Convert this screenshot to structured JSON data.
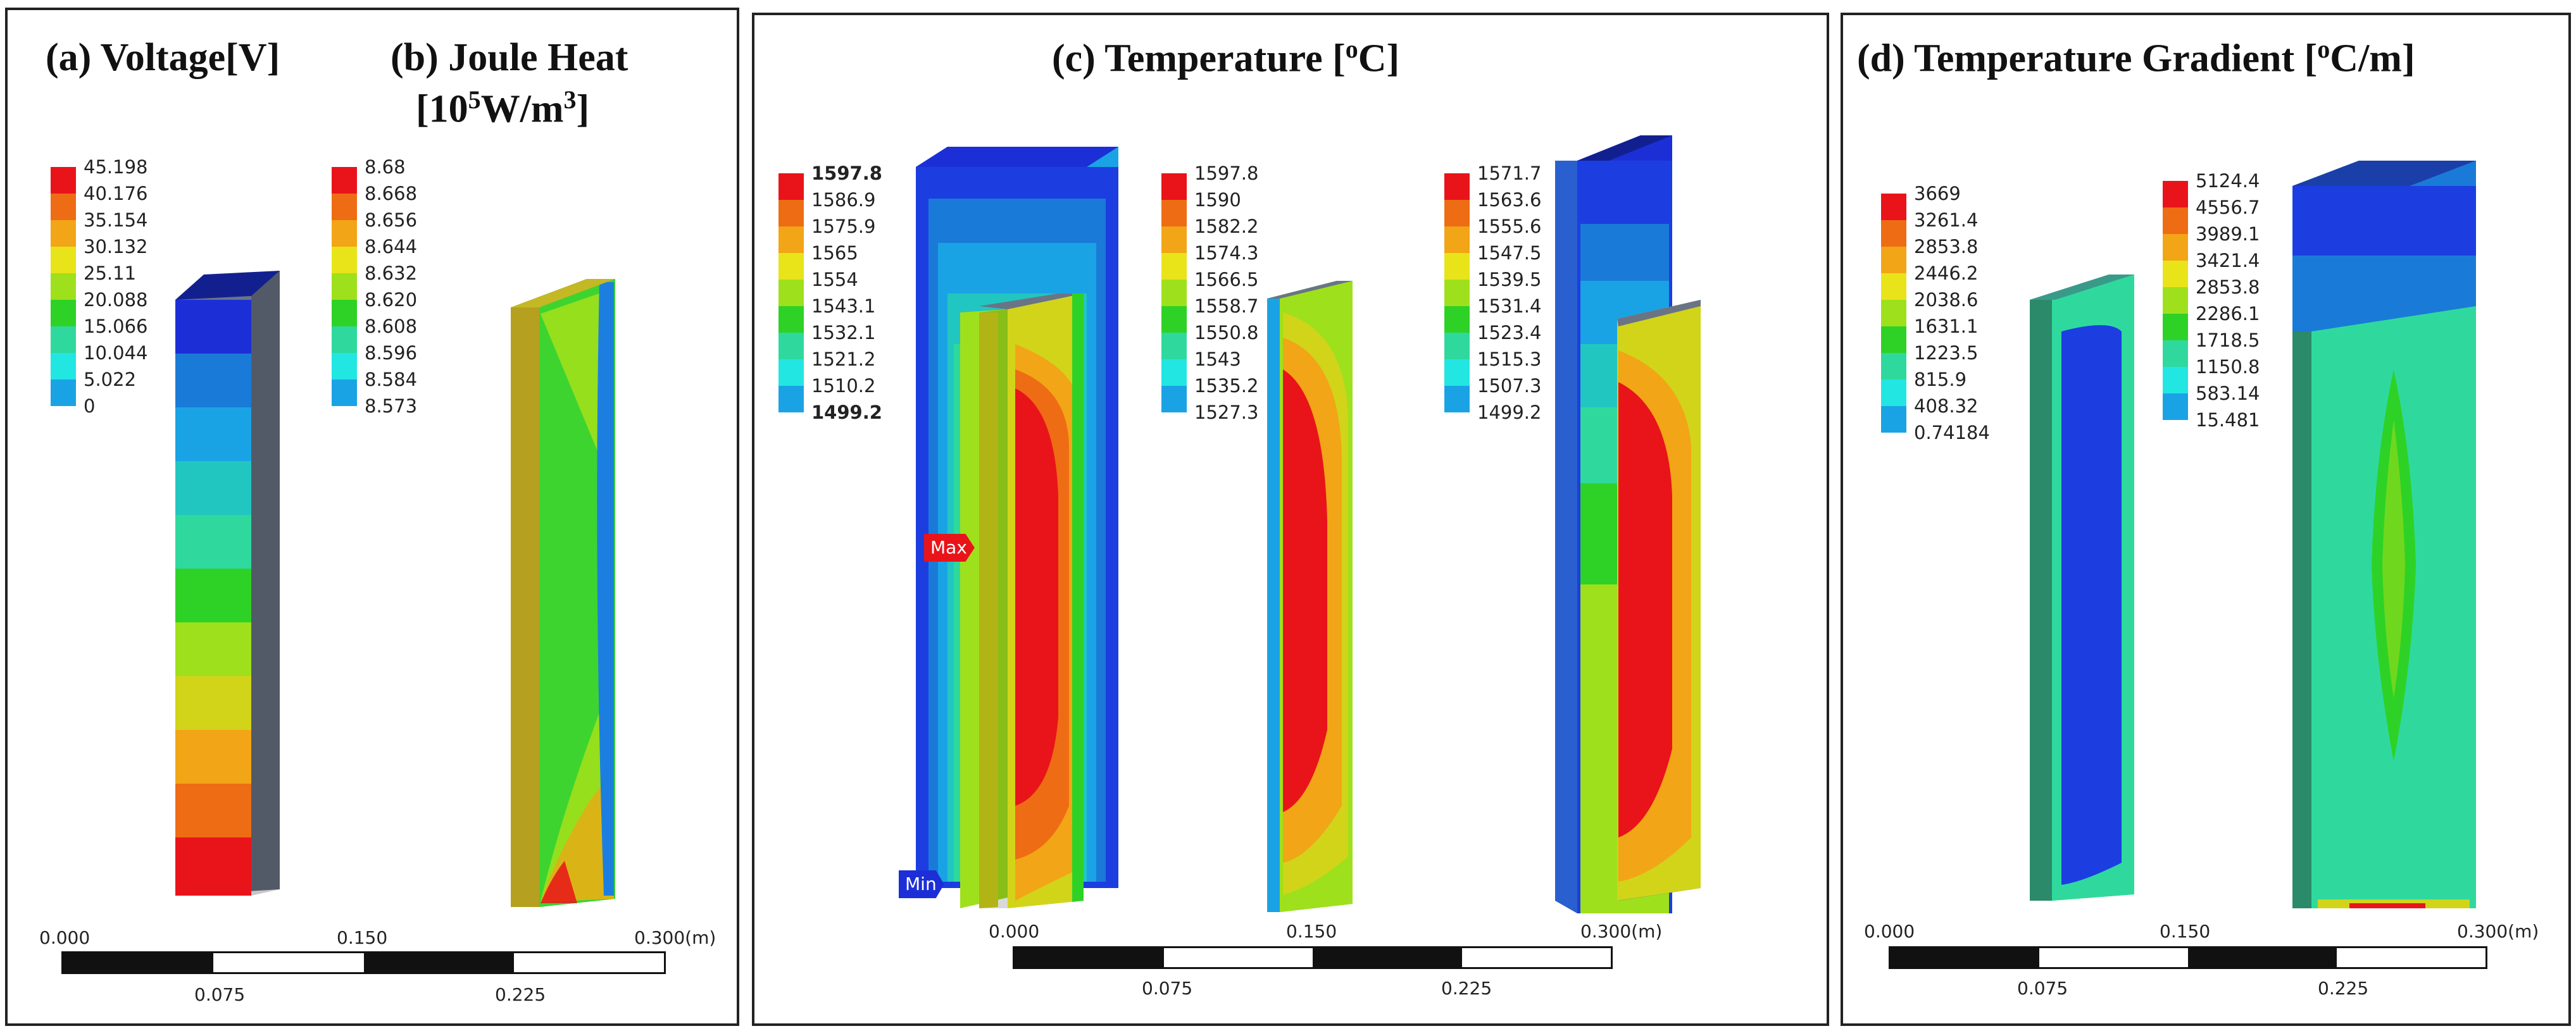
{
  "panels": {
    "a": {
      "title": "(a) Voltage[V]",
      "legend": [
        "45.198",
        "40.176",
        "35.154",
        "30.132",
        "25.11",
        "20.088",
        "15.066",
        "10.044",
        "5.022",
        "0"
      ]
    },
    "b": {
      "title_line1": "(b) Joule Heat",
      "title_line2_base": "[10",
      "title_line2_exp": "5",
      "title_line2_unit": "W/m",
      "title_line2_exp2": "3",
      "title_line2_close": "]",
      "legend": [
        "8.68",
        "8.668",
        "8.656",
        "8.644",
        "8.632",
        "8.620",
        "8.608",
        "8.596",
        "8.584",
        "8.573"
      ]
    },
    "c": {
      "title": "(c) Temperature [",
      "title_exp": "o",
      "title_end": "C]",
      "legend1": [
        "1597.8",
        "1586.9",
        "1575.9",
        "1565",
        "1554",
        "1543.1",
        "1532.1",
        "1521.2",
        "1510.2",
        "1499.2"
      ],
      "legend2": [
        "1597.8",
        "1590",
        "1582.2",
        "1574.3",
        "1566.5",
        "1558.7",
        "1550.8",
        "1543",
        "1535.2",
        "1527.3"
      ],
      "legend3": [
        "1571.7",
        "1563.6",
        "1555.6",
        "1547.5",
        "1539.5",
        "1531.4",
        "1523.4",
        "1515.3",
        "1507.3",
        "1499.2"
      ],
      "max_label": "Max",
      "min_label": "Min"
    },
    "d": {
      "title": "(d) Temperature Gradient [",
      "title_exp": "o",
      "title_end": "C/m]",
      "legend1": [
        "3669",
        "3261.4",
        "2853.8",
        "2446.2",
        "2038.6",
        "1631.1",
        "1223.5",
        "815.9",
        "408.32",
        "0.74184"
      ],
      "legend2": [
        "5124.4",
        "4556.7",
        "3989.1",
        "3421.4",
        "2853.8",
        "2286.1",
        "1718.5",
        "1150.8",
        "583.14",
        "15.481"
      ]
    }
  },
  "scale": {
    "t0": "0.000",
    "t1": "0.150",
    "t2": "0.300",
    "unit": "(m)",
    "b1": "0.075",
    "b2": "0.225"
  },
  "colors": [
    "#e8141a",
    "#ee6c14",
    "#f2a516",
    "#e8e419",
    "#9fe01c",
    "#2ed226",
    "#2fd99e",
    "#22e6e2",
    "#1aa3e4",
    "#1c2fd6"
  ]
}
